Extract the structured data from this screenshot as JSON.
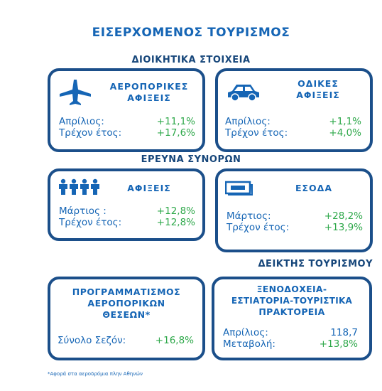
{
  "title": "ΕΙΣΕΡΧΟΜΕΝΟΣ ΤΟΥΡΙΣΜΟΣ",
  "sections": {
    "admin": "ΔΙΟΙΚΗΤΙΚΑ ΣΤΟΙΧΕΙΑ",
    "border": "ΕΡΕΥΝΑ ΣΥΝΟΡΩΝ",
    "indices": "ΔΕΙΚΤΗΣ ΤΟΥΡΙΣΜΟΥ"
  },
  "cards": {
    "air_arrivals": {
      "icon": "airplane-icon",
      "title_line1": "ΑΕΡΟΠΟΡΙΚΕΣ",
      "title_line2": "ΑΦΙΞΕΙΣ",
      "row1_label": "Απρίλιος:",
      "row1_value": "+11,1%",
      "row2_label": "Τρέχον έτος:",
      "row2_value": "+17,6%"
    },
    "road_arrivals": {
      "icon": "car-icon",
      "title_line1": "ΟΔΙΚΕΣ",
      "title_line2": "ΑΦΙΞΕΙΣ",
      "row1_label": "Απρίλιος:",
      "row1_value": "+1,1%",
      "row2_label": "Τρέχον έτος:",
      "row2_value": "+4,0%"
    },
    "border_arrivals": {
      "icon": "people-icon",
      "title": "ΑΦΙΞΕΙΣ",
      "row1_label": "Μάρτιος :",
      "row1_value": "+12,8%",
      "row2_label": "Τρέχον έτος:",
      "row2_value": "+12,8%"
    },
    "receipts": {
      "icon": "money-icon",
      "title": "ΕΣΟΔΑ",
      "row1_label": "Μάρτιος:",
      "row1_value": "+28,2%",
      "row2_label": "Τρέχον έτος:",
      "row2_value": "+13,9%"
    },
    "seat_planning": {
      "title_line1": "ΠΡΟΓΡΑΜΜΑΤΙΣΜΟΣ",
      "title_line2": "ΑΕΡΟΠΟΡΙΚΩΝ",
      "title_line3": "ΘΕΣΕΩΝ*",
      "row1_label": "Σύνολο Σεζόν:",
      "row1_value": "+16,8%"
    },
    "hotels": {
      "title_line1": "ΞΕΝΟΔΟΧΕΙΑ-",
      "title_line2": "ΕΣΤΙΑΤΟΡΙΑ-ΤΟΥΡΙΣΤΙΚΑ",
      "title_line3": "ΠΡΑΚΤΟΡΕΙΑ",
      "row1_label": "Απρίλιος:",
      "row1_value": "118,7",
      "row2_label": "Μεταβολή:",
      "row2_value": "+13,8%"
    }
  },
  "footnote": "*Αφορά στα αεροδρόμια πλην Αθηνών",
  "colors": {
    "blue": "#1565b5",
    "dark_blue": "#1b4f8a",
    "green": "#2ea84a"
  }
}
